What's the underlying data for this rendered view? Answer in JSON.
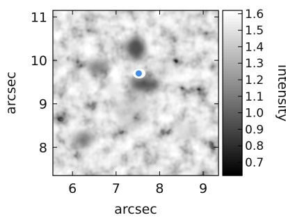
{
  "chart_data": {
    "type": "heatmap",
    "title": "",
    "xlabel": "arcsec",
    "ylabel": "arcsec",
    "xlim": [
      5.55,
      9.35
    ],
    "ylim": [
      7.35,
      11.15
    ],
    "x_ticks": [
      6,
      7,
      8,
      9
    ],
    "x_tick_labels": [
      "6",
      "7",
      "8",
      "9"
    ],
    "y_ticks": [
      8,
      9,
      10,
      11
    ],
    "y_tick_labels": [
      "8",
      "9",
      "10",
      "11"
    ],
    "grid": false,
    "colorscale": "grayscale",
    "colorbar": {
      "label": "intensity",
      "range": [
        0.62,
        1.62
      ],
      "ticks": [
        0.7,
        0.8,
        0.9,
        1.0,
        1.1,
        1.2,
        1.3,
        1.4,
        1.5,
        1.6
      ],
      "tick_labels": [
        "0.7",
        "0.8",
        "0.9",
        "1.0",
        "1.1",
        "1.2",
        "1.3",
        "1.4",
        "1.5",
        "1.6"
      ]
    },
    "highlight": {
      "x": 7.52,
      "y": 9.7,
      "color": "#3d8ef0"
    }
  }
}
